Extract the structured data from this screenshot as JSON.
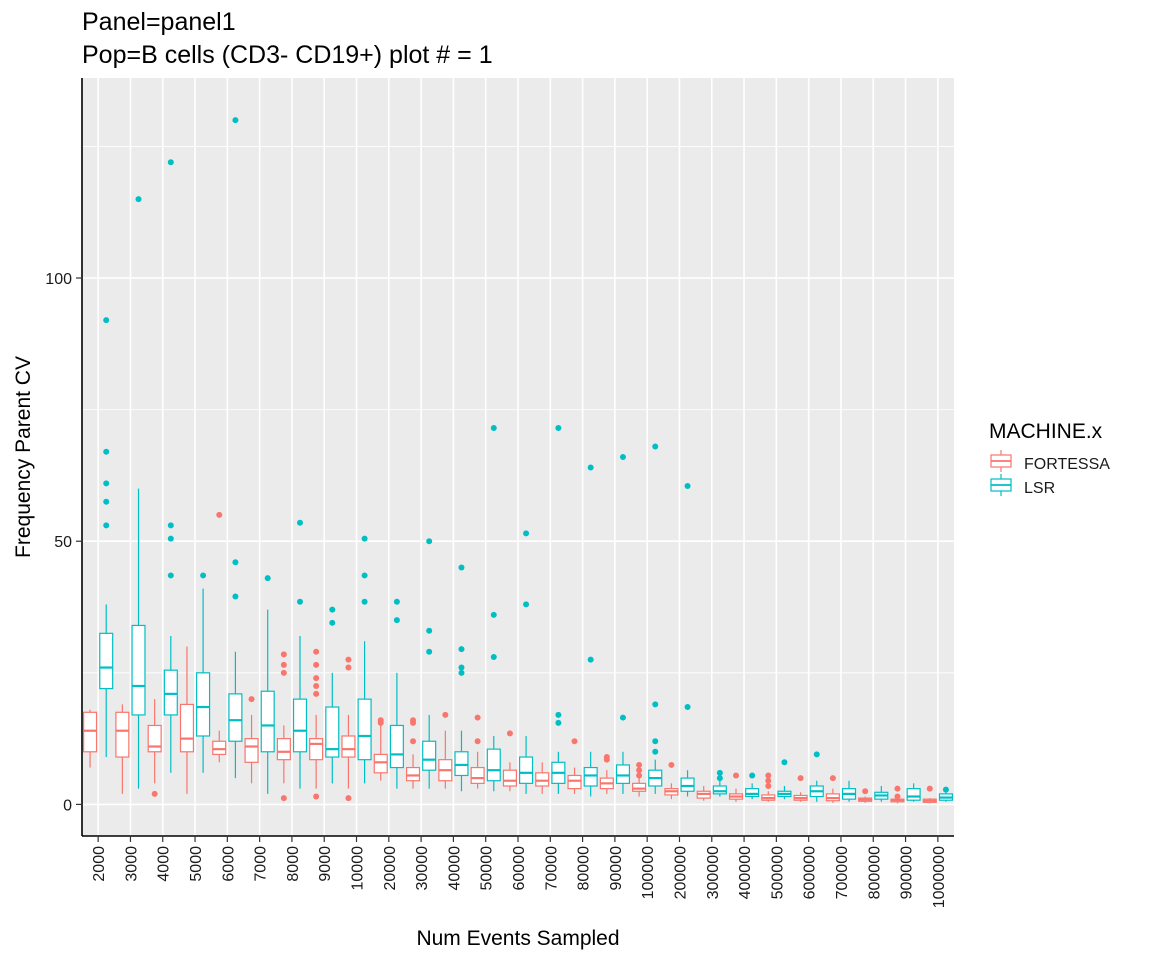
{
  "chart_data": {
    "type": "boxplot",
    "title_lines": [
      "Panel=panel1",
      "Pop=B cells (CD3- CD19+) plot # = 1"
    ],
    "xlabel": "Num Events Sampled",
    "ylabel": "Frequency Parent CV",
    "ylim": [
      -6,
      138
    ],
    "y_ticks": [
      0,
      50,
      100
    ],
    "grid": true,
    "legend": {
      "title": "MACHINE.x",
      "position": "right",
      "entries": [
        {
          "name": "FORTESSA",
          "color": "#F8766D"
        },
        {
          "name": "LSR",
          "color": "#00BFC4"
        }
      ]
    },
    "categories": [
      "2000",
      "3000",
      "4000",
      "5000",
      "6000",
      "7000",
      "8000",
      "9000",
      "10000",
      "20000",
      "30000",
      "40000",
      "50000",
      "60000",
      "70000",
      "80000",
      "90000",
      "100000",
      "200000",
      "300000",
      "400000",
      "500000",
      "600000",
      "700000",
      "800000",
      "900000",
      "1000000"
    ],
    "series": [
      {
        "name": "FORTESSA",
        "color": "#F8766D",
        "boxes": [
          {
            "min": 7,
            "q1": 10,
            "median": 14,
            "q3": 17.5,
            "max": 18,
            "outliers": []
          },
          {
            "min": 2,
            "q1": 9,
            "median": 14,
            "q3": 17.5,
            "max": 19,
            "outliers": []
          },
          {
            "min": 4,
            "q1": 10,
            "median": 11,
            "q3": 15,
            "max": 20,
            "outliers": [
              2
            ]
          },
          {
            "min": 2,
            "q1": 10,
            "median": 12.5,
            "q3": 19,
            "max": 30,
            "outliers": []
          },
          {
            "min": 8,
            "q1": 9.5,
            "median": 10.5,
            "q3": 12,
            "max": 14,
            "outliers": [
              55
            ]
          },
          {
            "min": 4,
            "q1": 8,
            "median": 11,
            "q3": 12.5,
            "max": 17,
            "outliers": [
              20
            ]
          },
          {
            "min": 4,
            "q1": 8.5,
            "median": 10,
            "q3": 12.5,
            "max": 15,
            "outliers": [
              1.2,
              25,
              26.5,
              28.5
            ]
          },
          {
            "min": 3,
            "q1": 8.5,
            "median": 11.5,
            "q3": 12.5,
            "max": 17,
            "outliers": [
              1.5,
              21,
              22.5,
              24,
              26.5,
              29
            ]
          },
          {
            "min": 3,
            "q1": 9,
            "median": 10.5,
            "q3": 13,
            "max": 17,
            "outliers": [
              1.2,
              26,
              27.5
            ]
          },
          {
            "min": 4.5,
            "q1": 6,
            "median": 8,
            "q3": 9.5,
            "max": 15,
            "outliers": [
              15.5,
              16
            ]
          },
          {
            "min": 3,
            "q1": 4.5,
            "median": 5.5,
            "q3": 7,
            "max": 9.5,
            "outliers": [
              12,
              15.5,
              16
            ]
          },
          {
            "min": 3,
            "q1": 4.5,
            "median": 6.5,
            "q3": 8.5,
            "max": 14,
            "outliers": [
              17
            ]
          },
          {
            "min": 3,
            "q1": 4,
            "median": 5,
            "q3": 7,
            "max": 10,
            "outliers": [
              12,
              16.5
            ]
          },
          {
            "min": 2.5,
            "q1": 3.5,
            "median": 4.5,
            "q3": 6.5,
            "max": 8,
            "outliers": [
              13.5
            ]
          },
          {
            "min": 2,
            "q1": 3.5,
            "median": 4.5,
            "q3": 6,
            "max": 8,
            "outliers": []
          },
          {
            "min": 2,
            "q1": 3,
            "median": 4.5,
            "q3": 5.5,
            "max": 7,
            "outliers": [
              12
            ]
          },
          {
            "min": 2,
            "q1": 3,
            "median": 4,
            "q3": 5,
            "max": 6.5,
            "outliers": [
              8.5,
              9
            ]
          },
          {
            "min": 1.5,
            "q1": 2.5,
            "median": 3,
            "q3": 4,
            "max": 5,
            "outliers": [
              5.5,
              6.5,
              7.5
            ]
          },
          {
            "min": 1,
            "q1": 1.8,
            "median": 2.5,
            "q3": 3,
            "max": 4,
            "outliers": [
              7.5
            ]
          },
          {
            "min": 0.7,
            "q1": 1.2,
            "median": 2,
            "q3": 2.5,
            "max": 3.5,
            "outliers": []
          },
          {
            "min": 0.5,
            "q1": 1,
            "median": 1.5,
            "q3": 2,
            "max": 3,
            "outliers": [
              5.5
            ]
          },
          {
            "min": 0.5,
            "q1": 0.8,
            "median": 1.2,
            "q3": 1.8,
            "max": 2.5,
            "outliers": [
              3.5,
              4.5,
              5.5
            ]
          },
          {
            "min": 0.5,
            "q1": 0.8,
            "median": 1.2,
            "q3": 1.7,
            "max": 2.3,
            "outliers": [
              5
            ]
          },
          {
            "min": 0.3,
            "q1": 0.7,
            "median": 1.2,
            "q3": 2,
            "max": 3,
            "outliers": [
              5
            ]
          },
          {
            "min": 0.3,
            "q1": 0.6,
            "median": 0.9,
            "q3": 1.2,
            "max": 1.5,
            "outliers": [
              2.5
            ]
          },
          {
            "min": 0.2,
            "q1": 0.5,
            "median": 0.8,
            "q3": 1,
            "max": 1.3,
            "outliers": [
              1.5,
              3
            ]
          },
          {
            "min": 0.2,
            "q1": 0.4,
            "median": 0.7,
            "q3": 1,
            "max": 1.2,
            "outliers": [
              3
            ]
          }
        ]
      },
      {
        "name": "LSR",
        "color": "#00BFC4",
        "boxes": [
          {
            "min": 9,
            "q1": 22,
            "median": 26,
            "q3": 32.5,
            "max": 38,
            "outliers": [
              53,
              57.5,
              61,
              67,
              92
            ]
          },
          {
            "min": 3,
            "q1": 17,
            "median": 22.5,
            "q3": 34,
            "max": 60,
            "outliers": [
              115
            ]
          },
          {
            "min": 6,
            "q1": 17,
            "median": 21,
            "q3": 25.5,
            "max": 32,
            "outliers": [
              43.5,
              50.5,
              53,
              122
            ]
          },
          {
            "min": 6,
            "q1": 13,
            "median": 18.5,
            "q3": 25,
            "max": 41,
            "outliers": [
              43.5
            ]
          },
          {
            "min": 5,
            "q1": 12,
            "median": 16,
            "q3": 21,
            "max": 29,
            "outliers": [
              39.5,
              46,
              130
            ]
          },
          {
            "min": 2,
            "q1": 10,
            "median": 15,
            "q3": 21.5,
            "max": 37,
            "outliers": [
              43
            ]
          },
          {
            "min": 3,
            "q1": 10,
            "median": 14,
            "q3": 20,
            "max": 32,
            "outliers": [
              38.5,
              53.5
            ]
          },
          {
            "min": 4,
            "q1": 9,
            "median": 10.5,
            "q3": 18.5,
            "max": 25,
            "outliers": [
              34.5,
              37
            ]
          },
          {
            "min": 4,
            "q1": 8.5,
            "median": 13,
            "q3": 20,
            "max": 31,
            "outliers": [
              38.5,
              43.5,
              50.5
            ]
          },
          {
            "min": 3,
            "q1": 7,
            "median": 9.5,
            "q3": 15,
            "max": 25,
            "outliers": [
              35,
              38.5
            ]
          },
          {
            "min": 3,
            "q1": 6.5,
            "median": 8.5,
            "q3": 12,
            "max": 17,
            "outliers": [
              29,
              33,
              50
            ]
          },
          {
            "min": 2.5,
            "q1": 5.5,
            "median": 7.5,
            "q3": 10,
            "max": 14,
            "outliers": [
              25,
              26,
              29.5,
              45
            ]
          },
          {
            "min": 2.5,
            "q1": 4.5,
            "median": 6.5,
            "q3": 10.5,
            "max": 13,
            "outliers": [
              28,
              36,
              71.5
            ]
          },
          {
            "min": 2,
            "q1": 4,
            "median": 6,
            "q3": 9,
            "max": 13,
            "outliers": [
              38,
              51.5
            ]
          },
          {
            "min": 2,
            "q1": 4,
            "median": 6,
            "q3": 8,
            "max": 10,
            "outliers": [
              15.5,
              17,
              71.5
            ]
          },
          {
            "min": 1.5,
            "q1": 3.5,
            "median": 5.5,
            "q3": 7,
            "max": 10,
            "outliers": [
              27.5,
              64
            ]
          },
          {
            "min": 2,
            "q1": 4,
            "median": 5.5,
            "q3": 7.5,
            "max": 10,
            "outliers": [
              16.5,
              66
            ]
          },
          {
            "min": 2,
            "q1": 3.5,
            "median": 5,
            "q3": 6.5,
            "max": 8.5,
            "outliers": [
              10,
              12,
              19,
              68
            ]
          },
          {
            "min": 1.5,
            "q1": 2.5,
            "median": 3.5,
            "q3": 5,
            "max": 6.5,
            "outliers": [
              18.5,
              60.5
            ]
          },
          {
            "min": 1.5,
            "q1": 2,
            "median": 2.5,
            "q3": 3.5,
            "max": 4.5,
            "outliers": [
              5,
              6
            ]
          },
          {
            "min": 1,
            "q1": 1.5,
            "median": 2,
            "q3": 3,
            "max": 4,
            "outliers": [
              5.5
            ]
          },
          {
            "min": 1,
            "q1": 1.5,
            "median": 2,
            "q3": 2.5,
            "max": 3.5,
            "outliers": [
              8
            ]
          },
          {
            "min": 0.5,
            "q1": 1.5,
            "median": 2.5,
            "q3": 3.5,
            "max": 4.5,
            "outliers": [
              9.5
            ]
          },
          {
            "min": 0.5,
            "q1": 1,
            "median": 2,
            "q3": 3,
            "max": 4.5,
            "outliers": []
          },
          {
            "min": 0.5,
            "q1": 1,
            "median": 1.7,
            "q3": 2.3,
            "max": 3.5,
            "outliers": []
          },
          {
            "min": 0.5,
            "q1": 0.8,
            "median": 1.5,
            "q3": 3,
            "max": 4,
            "outliers": []
          },
          {
            "min": 0.5,
            "q1": 0.8,
            "median": 1.3,
            "q3": 2,
            "max": 2.5,
            "outliers": [
              2.8
            ]
          }
        ]
      }
    ]
  }
}
